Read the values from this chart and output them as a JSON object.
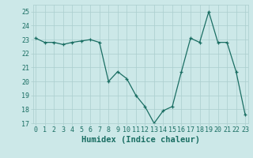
{
  "x": [
    0,
    1,
    2,
    3,
    4,
    5,
    6,
    7,
    8,
    9,
    10,
    11,
    12,
    13,
    14,
    15,
    16,
    17,
    18,
    19,
    20,
    21,
    22,
    23
  ],
  "y": [
    23.1,
    22.8,
    22.8,
    22.65,
    22.8,
    22.9,
    23.0,
    22.8,
    20.0,
    20.7,
    20.2,
    19.0,
    18.2,
    17.0,
    17.9,
    18.2,
    20.7,
    23.1,
    22.8,
    25.0,
    22.8,
    22.8,
    20.7,
    17.6
  ],
  "xlabel": "Humidex (Indice chaleur)",
  "ylim": [
    17,
    25.5
  ],
  "yticks": [
    17,
    18,
    19,
    20,
    21,
    22,
    23,
    24,
    25
  ],
  "xticks": [
    0,
    1,
    2,
    3,
    4,
    5,
    6,
    7,
    8,
    9,
    10,
    11,
    12,
    13,
    14,
    15,
    16,
    17,
    18,
    19,
    20,
    21,
    22,
    23
  ],
  "line_color": "#1a6e63",
  "bg_color": "#cce8e8",
  "grid_color": "#aacece",
  "font_color": "#1a6e63",
  "xlabel_fontsize": 7.5,
  "tick_fontsize": 6.0
}
